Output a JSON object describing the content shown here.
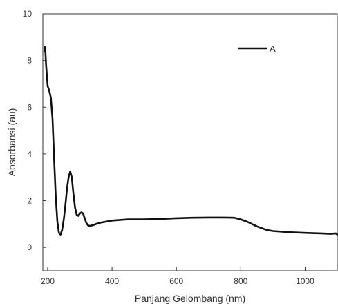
{
  "chart_data": {
    "type": "line",
    "title": "",
    "xlabel": "Panjang Gelombang (nm)",
    "ylabel": "Absorbansi (au)",
    "xlim": [
      185,
      1100
    ],
    "ylim": [
      -1,
      10
    ],
    "xticks": [
      200,
      400,
      600,
      800,
      1000
    ],
    "yticks": [
      0,
      2,
      4,
      6,
      8,
      10
    ],
    "grid": false,
    "legend_position": "top-right",
    "series": [
      {
        "name": "A",
        "color": "#111111",
        "x": [
          190,
          192,
          195,
          200,
          205,
          210,
          215,
          220,
          225,
          230,
          235,
          240,
          245,
          250,
          255,
          260,
          265,
          270,
          275,
          280,
          285,
          290,
          295,
          300,
          305,
          310,
          315,
          320,
          325,
          330,
          340,
          350,
          360,
          380,
          400,
          450,
          500,
          550,
          600,
          650,
          700,
          750,
          780,
          800,
          820,
          850,
          880,
          900,
          950,
          1000,
          1050,
          1080,
          1095,
          1100
        ],
        "y": [
          8.4,
          8.6,
          7.8,
          6.9,
          6.7,
          6.4,
          5.5,
          3.8,
          2.2,
          1.1,
          0.62,
          0.55,
          0.75,
          1.2,
          1.8,
          2.5,
          3.0,
          3.25,
          3.0,
          2.3,
          1.7,
          1.4,
          1.35,
          1.45,
          1.5,
          1.45,
          1.25,
          1.05,
          0.95,
          0.92,
          0.95,
          1.0,
          1.05,
          1.1,
          1.15,
          1.2,
          1.2,
          1.22,
          1.25,
          1.27,
          1.28,
          1.28,
          1.27,
          1.2,
          1.1,
          0.9,
          0.75,
          0.7,
          0.65,
          0.62,
          0.6,
          0.58,
          0.6,
          0.55
        ]
      }
    ]
  }
}
